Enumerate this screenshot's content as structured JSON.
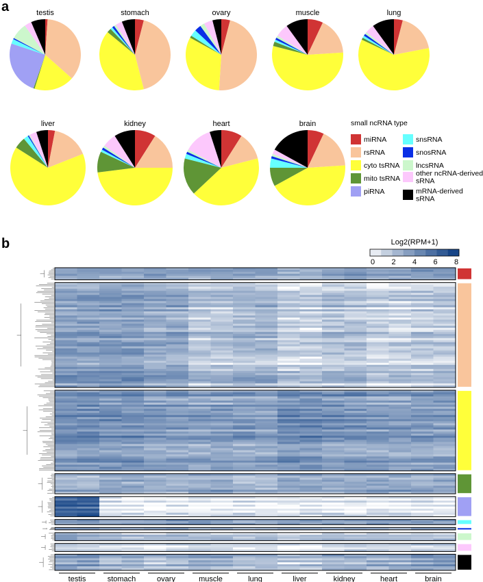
{
  "panel_labels": [
    "a",
    "b"
  ],
  "colors": {
    "miRNA": "#d03434",
    "rsRNA": "#f9c59c",
    "cyto tsRNA": "#ffff3a",
    "mito tsRNA": "#5f9536",
    "piRNA": "#a0a0f4",
    "snsRNA": "#66ffff",
    "snosRNA": "#0a2fe6",
    "lncsRNA": "#ccf7cc",
    "other ncRNA-derived sRNA": "#fcc8fc",
    "mRNA-derived sRNA": "#000000",
    "heatmap_low": "#ffffff",
    "heatmap_high": "#0a3b80"
  },
  "chart_data": [
    {
      "type": "pie",
      "panel": "a",
      "legend_title": "small ncRNA type",
      "categories": [
        "miRNA",
        "rsRNA",
        "cyto tsRNA",
        "mito tsRNA",
        "piRNA",
        "snsRNA",
        "snosRNA",
        "lncsRNA",
        "other ncRNA-derived sRNA",
        "mRNA-derived sRNA"
      ],
      "legend_labels": [
        [
          "miRNA"
        ],
        [
          "rsRNA"
        ],
        [
          "cyto tsRNA"
        ],
        [
          "mito tsRNA"
        ],
        [
          "piRNA"
        ],
        [
          "snsRNA"
        ],
        [
          "snosRNA"
        ],
        [
          "lncsRNA"
        ],
        [
          "other ncRNA-derived",
          "sRNA"
        ],
        [
          "mRNA-derived",
          "sRNA"
        ]
      ],
      "pies": [
        {
          "name": "testis",
          "values": [
            1,
            33,
            17,
            0.5,
            23,
            2,
            0.5,
            7,
            3,
            6
          ]
        },
        {
          "name": "stomach",
          "values": [
            4,
            42,
            40,
            2,
            0,
            1,
            1,
            1,
            3,
            6
          ]
        },
        {
          "name": "ovary",
          "values": [
            4,
            47,
            32,
            1,
            0,
            3,
            3,
            2,
            4,
            4
          ]
        },
        {
          "name": "muscle",
          "values": [
            7,
            17,
            55,
            2,
            0,
            1,
            1,
            1,
            6,
            10
          ]
        },
        {
          "name": "lung",
          "values": [
            4,
            18,
            60,
            1,
            0,
            1,
            1,
            1,
            4,
            10
          ]
        },
        {
          "name": "liver",
          "values": [
            3,
            16,
            65,
            5,
            0,
            2,
            0.5,
            0.5,
            3,
            5
          ]
        },
        {
          "name": "kidney",
          "values": [
            9,
            16,
            48,
            9,
            0,
            1,
            1,
            1,
            6,
            9
          ]
        },
        {
          "name": "heart",
          "values": [
            9,
            12,
            42,
            16,
            0,
            2,
            1,
            1,
            12,
            5
          ]
        },
        {
          "name": "brain",
          "values": [
            7,
            17,
            43,
            8,
            0,
            4,
            1,
            1,
            2,
            17
          ]
        }
      ]
    },
    {
      "type": "heatmap",
      "panel": "b",
      "legend_title": "Log2(RPM+1)",
      "colorbar_ticks": [
        "0",
        "2",
        "4",
        "6",
        "8"
      ],
      "range": [
        0,
        8
      ],
      "columns": [
        "testis",
        "stomach",
        "ovary",
        "muscle",
        "lung",
        "liver",
        "kidney",
        "heart",
        "brain"
      ],
      "replicates_per_tissue": 2,
      "row_groups": [
        {
          "type": "miRNA",
          "relative_rows": 3,
          "baseline_by_tissue": [
            3.0,
            2.5,
            3.0,
            2.5,
            3.0,
            2.0,
            3.0,
            2.8,
            3.0
          ]
        },
        {
          "type": "rsRNA",
          "relative_rows": 26,
          "baseline_by_tissue": [
            3.5,
            3.5,
            3.0,
            2.0,
            2.5,
            1.5,
            2.0,
            1.5,
            1.8
          ]
        },
        {
          "type": "cyto tsRNA",
          "relative_rows": 20,
          "baseline_by_tissue": [
            4.0,
            4.0,
            3.5,
            3.5,
            3.5,
            4.2,
            3.8,
            3.5,
            3.5
          ]
        },
        {
          "type": "mito tsRNA",
          "relative_rows": 5,
          "baseline_by_tissue": [
            3.0,
            3.5,
            3.0,
            3.5,
            3.0,
            3.5,
            3.5,
            3.5,
            3.5
          ]
        },
        {
          "type": "piRNA",
          "relative_rows": 5,
          "baseline_by_tissue": [
            6.0,
            0.2,
            0.2,
            0.2,
            0.2,
            0.2,
            0.2,
            0.2,
            0.2
          ]
        },
        {
          "type": "snsRNA",
          "relative_rows": 1.3,
          "baseline_by_tissue": [
            3.0,
            2.5,
            3.0,
            3.0,
            2.5,
            2.5,
            3.0,
            3.0,
            3.0
          ]
        },
        {
          "type": "snosRNA",
          "relative_rows": 0.6,
          "baseline_by_tissue": [
            2.5,
            2.0,
            2.5,
            2.0,
            2.0,
            2.0,
            2.5,
            2.5,
            2.5
          ]
        },
        {
          "type": "lncsRNA",
          "relative_rows": 2,
          "baseline_by_tissue": [
            2.5,
            1.5,
            1.5,
            1.5,
            1.5,
            1.0,
            1.5,
            1.5,
            1.5
          ]
        },
        {
          "type": "other ncRNA-derived sRNA",
          "relative_rows": 2,
          "baseline_by_tissue": [
            2.0,
            1.5,
            1.5,
            1.5,
            1.5,
            1.0,
            2.0,
            1.5,
            2.0
          ]
        },
        {
          "type": "mRNA-derived sRNA",
          "relative_rows": 4,
          "baseline_by_tissue": [
            3.5,
            2.5,
            2.5,
            3.0,
            2.5,
            2.0,
            3.0,
            3.0,
            3.5
          ]
        }
      ]
    }
  ]
}
